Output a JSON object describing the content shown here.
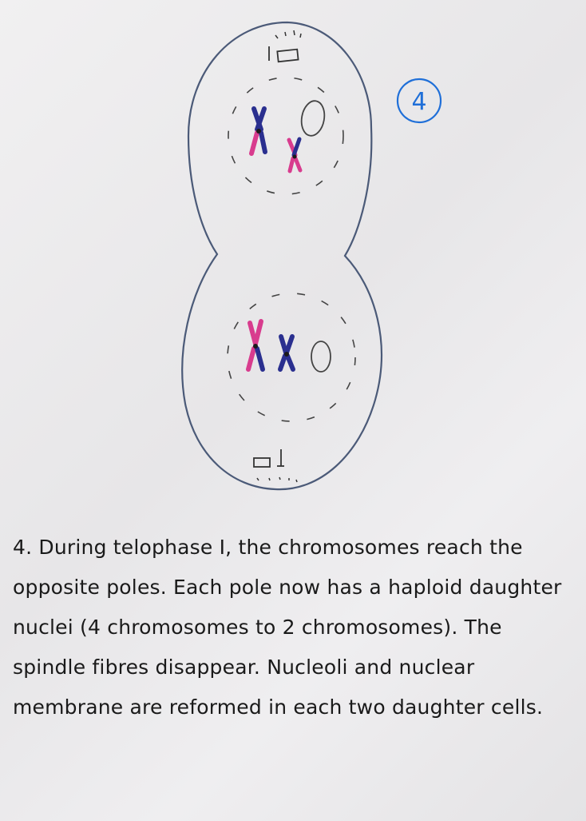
{
  "stage_label": "4",
  "caption": "4. During telophase I, the chromosomes reach the opposite poles. Each pole now has a haploid daughter nuclei (4 chromosomes to 2 chromosomes). The spindle fibres disappear. Nucleoli and nuclear membrane are reformed in each two daughter cells.",
  "colors": {
    "cell_outline": "#4b5a78",
    "chromosome_blue": "#2a2f8f",
    "chromosome_pink": "#d83c8e",
    "label_blue": "#1f6fd8"
  }
}
